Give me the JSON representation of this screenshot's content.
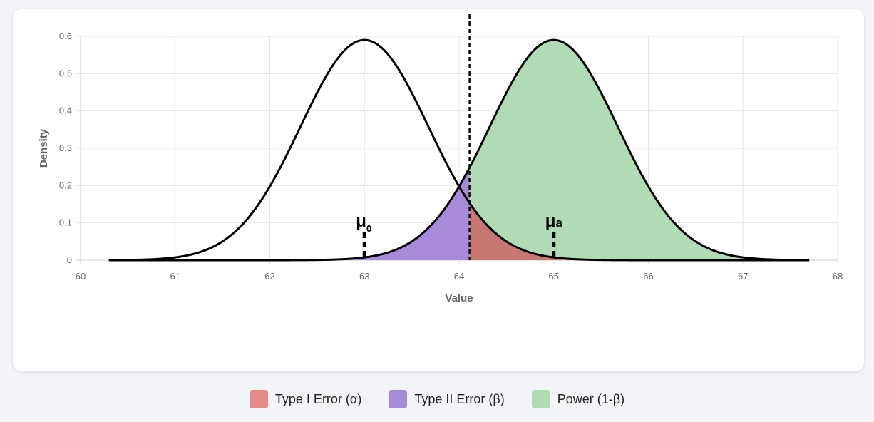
{
  "chart_data": {
    "type": "area",
    "xlabel": "Value",
    "ylabel": "Density",
    "xlim": [
      60,
      68
    ],
    "ylim": [
      0,
      0.6
    ],
    "x_ticks": [
      "60",
      "61",
      "62",
      "63",
      "64",
      "65",
      "66",
      "67",
      "68"
    ],
    "y_ticks": [
      "0",
      "0.1",
      "0.2",
      "0.3",
      "0.4",
      "0.5",
      "0.6"
    ],
    "grid": true,
    "null_mean": 63,
    "alt_mean": 65,
    "std_dev": 0.676,
    "critical_value": 64.11,
    "curve_range": [
      60.3,
      67.7
    ],
    "peak_density": 0.59,
    "annotations": {
      "mu0": "μ",
      "mu0_sub": "0",
      "mua": "μ",
      "mua_sub": "a"
    },
    "legend_placement": "bottom",
    "legend": [
      {
        "label": "Type I Error (α)",
        "color": "#e88a8a"
      },
      {
        "label": "Type II Error (β)",
        "color": "#a68ad9"
      },
      {
        "label": "Power (1-β)",
        "color": "#b2dbb4"
      }
    ],
    "fill_colors": {
      "alpha": "#c87870",
      "beta": "#a78bda",
      "power": "#b1dbb4"
    }
  }
}
